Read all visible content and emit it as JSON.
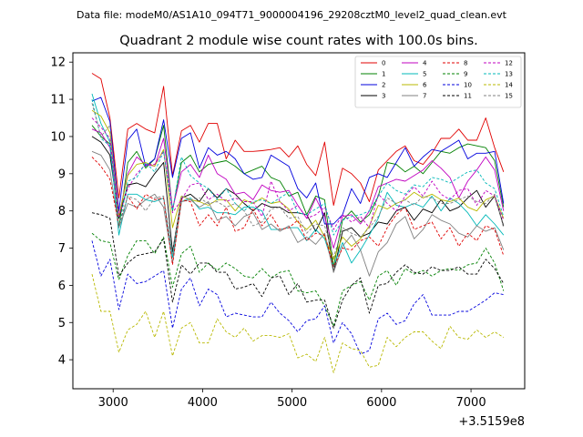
{
  "chart_data": {
    "type": "line",
    "suptitle": "Data file: modeM0/AS1A10_094T71_9000004196_29208cztM0_level2_quad_clean.evt",
    "title": "Quadrant 2 module wise count rates with 100.0s bins.",
    "xlabel": "",
    "ylabel": "",
    "x_offset_label": "+3.5159e8",
    "xlim": [
      2550,
      7600
    ],
    "ylim": [
      3.22,
      12.25
    ],
    "xticks": [
      3000,
      4000,
      5000,
      6000,
      7000
    ],
    "yticks": [
      4,
      5,
      6,
      7,
      8,
      9,
      10,
      11,
      12
    ],
    "grid": false,
    "legend_position": "upper right",
    "x": [
      2764,
      2864,
      2964,
      3064,
      3164,
      3264,
      3364,
      3464,
      3564,
      3664,
      3764,
      3864,
      3964,
      4064,
      4164,
      4264,
      4364,
      4464,
      4564,
      4664,
      4764,
      4864,
      4964,
      5064,
      5164,
      5264,
      5364,
      5464,
      5564,
      5664,
      5764,
      5864,
      5964,
      6064,
      6164,
      6264,
      6364,
      6464,
      6564,
      6664,
      6764,
      6864,
      6964,
      7064,
      7164,
      7264,
      7364
    ],
    "series": [
      {
        "name": "0",
        "color": "#e00000",
        "dash": "solid",
        "values": [
          11.7,
          11.55,
          10.5,
          8.35,
          10.2,
          10.35,
          10.2,
          10.1,
          11.35,
          8.95,
          10.15,
          10.3,
          9.85,
          10.35,
          10.35,
          9.4,
          9.9,
          9.6,
          9.6,
          9.62,
          9.65,
          9.7,
          9.45,
          9.75,
          9.25,
          8.95,
          9.85,
          8.15,
          9.15,
          9.0,
          8.75,
          8.25,
          9.1,
          9.35,
          9.6,
          9.75,
          9.35,
          9.25,
          9.55,
          9.95,
          9.95,
          10.2,
          9.9,
          9.9,
          10.5,
          9.7,
          9.05
        ]
      },
      {
        "name": "1",
        "color": "#008000",
        "dash": "solid",
        "values": [
          10.3,
          10.0,
          9.8,
          7.55,
          9.3,
          9.6,
          9.15,
          9.4,
          10.3,
          8.0,
          9.3,
          9.5,
          9.05,
          9.25,
          9.3,
          9.35,
          9.2,
          9.0,
          9.1,
          9.2,
          8.9,
          8.8,
          8.4,
          8.5,
          7.9,
          8.4,
          8.3,
          6.5,
          7.75,
          8.0,
          7.7,
          7.9,
          8.4,
          9.3,
          9.25,
          9.05,
          9.2,
          9.0,
          9.3,
          9.6,
          9.55,
          9.7,
          9.8,
          9.75,
          9.7,
          9.35,
          8.1
        ]
      },
      {
        "name": "2",
        "color": "#0000dd",
        "dash": "solid",
        "values": [
          10.95,
          11.05,
          10.4,
          8.0,
          9.9,
          10.2,
          9.2,
          9.4,
          10.45,
          8.9,
          9.95,
          10.1,
          9.15,
          9.7,
          9.5,
          9.6,
          9.4,
          9.0,
          8.85,
          8.9,
          9.5,
          9.35,
          9.2,
          8.6,
          8.35,
          8.75,
          7.65,
          7.65,
          7.9,
          8.6,
          8.2,
          8.9,
          9.0,
          8.9,
          9.3,
          9.7,
          9.2,
          9.45,
          9.65,
          9.6,
          9.75,
          9.9,
          9.4,
          9.55,
          9.55,
          9.6,
          8.2
        ]
      },
      {
        "name": "3",
        "color": "#000000",
        "dash": "solid",
        "values": [
          10.0,
          9.85,
          9.5,
          7.8,
          8.7,
          8.75,
          8.65,
          9.0,
          9.3,
          6.9,
          8.35,
          8.45,
          8.25,
          8.6,
          8.35,
          8.6,
          8.45,
          8.2,
          8.0,
          8.2,
          8.1,
          8.1,
          7.95,
          7.95,
          7.9,
          7.45,
          7.95,
          6.35,
          7.45,
          7.55,
          7.3,
          7.4,
          7.7,
          7.65,
          8.0,
          8.1,
          7.75,
          8.05,
          7.95,
          8.3,
          8.0,
          8.1,
          8.35,
          8.55,
          8.1,
          8.4,
          7.6
        ]
      },
      {
        "name": "4",
        "color": "#c000c0",
        "dash": "solid",
        "values": [
          10.2,
          10.1,
          9.7,
          7.85,
          9.0,
          9.45,
          9.25,
          9.2,
          9.95,
          8.05,
          9.05,
          9.25,
          8.9,
          9.5,
          9.0,
          8.85,
          8.45,
          8.5,
          8.3,
          8.7,
          8.55,
          8.5,
          8.55,
          8.15,
          7.8,
          8.35,
          7.85,
          7.0,
          7.85,
          7.9,
          7.65,
          8.0,
          8.65,
          8.75,
          8.85,
          8.8,
          8.95,
          9.1,
          9.35,
          9.15,
          8.9,
          8.35,
          8.8,
          9.1,
          9.45,
          9.1,
          8.0
        ]
      },
      {
        "name": "5",
        "color": "#00b8b8",
        "dash": "solid",
        "values": [
          11.15,
          10.35,
          9.85,
          7.35,
          8.45,
          8.45,
          8.3,
          8.25,
          8.35,
          6.75,
          8.25,
          8.35,
          8.05,
          8.1,
          7.95,
          7.95,
          7.9,
          8.1,
          8.1,
          8.0,
          7.5,
          7.5,
          7.55,
          7.55,
          7.2,
          7.5,
          7.25,
          6.5,
          7.15,
          6.6,
          6.95,
          7.35,
          7.8,
          8.5,
          8.15,
          8.1,
          8.2,
          8.1,
          8.4,
          8.0,
          8.35,
          8.2,
          7.95,
          7.6,
          7.9,
          7.65,
          7.35
        ]
      },
      {
        "name": "6",
        "color": "#b8b800",
        "dash": "solid",
        "values": [
          10.7,
          10.55,
          10.1,
          7.85,
          8.95,
          9.25,
          9.3,
          9.2,
          9.65,
          7.55,
          8.4,
          8.3,
          8.25,
          8.15,
          8.3,
          8.3,
          8.0,
          8.3,
          8.2,
          8.35,
          8.2,
          8.25,
          8.05,
          7.7,
          7.5,
          7.75,
          7.3,
          6.7,
          7.3,
          7.05,
          7.25,
          7.6,
          8.15,
          8.05,
          8.2,
          8.3,
          8.5,
          8.35,
          8.45,
          8.3,
          8.25,
          8.35,
          8.1,
          8.0,
          8.3,
          8.4,
          7.8
        ]
      },
      {
        "name": "7",
        "color": "#808080",
        "dash": "solid",
        "values": [
          9.6,
          9.5,
          9.1,
          7.55,
          8.2,
          8.1,
          8.3,
          8.45,
          8.1,
          6.6,
          8.25,
          8.3,
          8.1,
          8.25,
          7.75,
          7.85,
          7.6,
          7.85,
          7.95,
          7.5,
          7.65,
          7.45,
          7.6,
          7.15,
          7.3,
          7.1,
          7.4,
          6.35,
          7.05,
          7.35,
          6.95,
          6.25,
          6.9,
          7.15,
          7.65,
          7.85,
          7.25,
          7.5,
          7.9,
          7.75,
          7.65,
          7.4,
          7.3,
          7.6,
          7.45,
          7.55,
          6.95
        ]
      },
      {
        "name": "8",
        "color": "#e00000",
        "dash": "dashed",
        "values": [
          9.45,
          9.2,
          8.85,
          7.6,
          8.4,
          8.05,
          8.45,
          8.3,
          8.35,
          6.55,
          8.3,
          8.25,
          7.6,
          7.9,
          7.6,
          8.1,
          7.45,
          7.55,
          8.05,
          7.6,
          7.9,
          7.5,
          7.55,
          7.75,
          7.2,
          7.4,
          7.35,
          6.5,
          7.0,
          6.95,
          7.2,
          7.3,
          7.05,
          7.55,
          7.9,
          8.1,
          7.5,
          7.6,
          7.7,
          7.25,
          7.55,
          7.05,
          7.4,
          7.2,
          7.6,
          7.5,
          6.8
        ]
      },
      {
        "name": "9",
        "color": "#008000",
        "dash": "dashed",
        "values": [
          7.4,
          7.2,
          7.15,
          6.15,
          6.8,
          7.2,
          7.2,
          6.85,
          7.3,
          5.95,
          6.85,
          7.05,
          6.35,
          6.6,
          6.4,
          6.6,
          6.45,
          6.25,
          6.2,
          6.45,
          6.2,
          6.35,
          6.4,
          5.85,
          5.8,
          5.85,
          5.45,
          4.9,
          5.85,
          6.0,
          6.1,
          5.6,
          6.25,
          6.4,
          6.0,
          6.45,
          6.3,
          6.4,
          6.25,
          6.4,
          6.45,
          6.4,
          6.55,
          6.6,
          7.0,
          6.6,
          5.85
        ]
      },
      {
        "name": "10",
        "color": "#0000dd",
        "dash": "dashed",
        "values": [
          7.2,
          6.25,
          6.7,
          5.35,
          6.3,
          6.05,
          6.1,
          6.25,
          6.4,
          4.85,
          5.9,
          6.2,
          5.45,
          5.9,
          5.75,
          5.15,
          5.25,
          5.2,
          5.15,
          5.15,
          5.55,
          5.25,
          5.05,
          4.75,
          5.05,
          5.1,
          5.45,
          4.45,
          5.0,
          4.7,
          4.15,
          4.25,
          5.1,
          5.25,
          4.95,
          5.05,
          5.5,
          5.75,
          5.2,
          5.2,
          5.2,
          5.3,
          5.3,
          5.45,
          5.6,
          5.8,
          5.75
        ]
      },
      {
        "name": "11",
        "color": "#000000",
        "dash": "dashed",
        "values": [
          7.95,
          7.9,
          7.8,
          6.25,
          6.6,
          6.8,
          6.85,
          6.9,
          7.25,
          5.55,
          6.55,
          6.3,
          6.6,
          6.6,
          6.35,
          6.35,
          5.9,
          5.95,
          6.05,
          5.7,
          6.2,
          6.25,
          5.75,
          6.05,
          5.55,
          5.6,
          5.6,
          4.85,
          5.6,
          6.0,
          6.2,
          5.25,
          6.0,
          6.05,
          6.35,
          6.55,
          6.35,
          6.3,
          6.5,
          6.4,
          6.4,
          6.5,
          6.3,
          6.3,
          6.7,
          6.45,
          6.05
        ]
      },
      {
        "name": "12",
        "color": "#c000c0",
        "dash": "dashed",
        "values": [
          10.5,
          10.25,
          9.95,
          7.85,
          8.6,
          9.0,
          9.25,
          9.25,
          9.6,
          7.95,
          8.3,
          8.7,
          8.75,
          8.3,
          8.45,
          8.25,
          8.35,
          8.25,
          8.25,
          7.85,
          8.8,
          8.25,
          8.0,
          8.15,
          7.8,
          7.9,
          8.1,
          7.5,
          7.9,
          7.7,
          7.85,
          7.55,
          8.45,
          8.2,
          8.0,
          8.4,
          8.65,
          8.4,
          8.8,
          8.45,
          8.3,
          8.55,
          8.6,
          8.15,
          8.55,
          8.4,
          7.75
        ]
      },
      {
        "name": "13",
        "color": "#00b8b8",
        "dash": "dashed",
        "values": [
          11.0,
          9.95,
          9.75,
          7.55,
          8.8,
          8.9,
          9.3,
          9.05,
          9.6,
          8.0,
          9.45,
          8.95,
          8.75,
          8.6,
          8.3,
          8.6,
          8.2,
          8.0,
          8.25,
          8.3,
          8.2,
          8.35,
          8.5,
          7.95,
          7.9,
          8.05,
          8.2,
          7.35,
          7.75,
          7.85,
          7.9,
          8.0,
          8.4,
          8.75,
          8.55,
          8.45,
          8.7,
          8.65,
          8.9,
          8.85,
          8.75,
          8.9,
          9.05,
          9.1,
          8.75,
          8.6,
          7.85
        ]
      },
      {
        "name": "14",
        "color": "#b8b800",
        "dash": "dashed",
        "values": [
          6.3,
          5.3,
          5.3,
          4.2,
          4.8,
          4.95,
          5.3,
          4.6,
          5.3,
          4.1,
          4.85,
          5.0,
          4.45,
          4.45,
          5.1,
          4.75,
          4.6,
          4.85,
          4.5,
          4.65,
          4.65,
          4.6,
          4.7,
          4.05,
          4.15,
          3.95,
          4.6,
          3.65,
          4.45,
          4.3,
          4.25,
          3.8,
          3.85,
          4.6,
          4.35,
          4.6,
          4.75,
          4.75,
          4.5,
          4.3,
          4.9,
          4.6,
          4.55,
          4.8,
          4.6,
          4.75,
          4.6
        ]
      },
      {
        "name": "15",
        "color": "#808080",
        "dash": "dashed",
        "values": [
          10.9,
          10.0,
          10.3,
          7.55,
          8.4,
          8.3,
          8.0,
          8.35,
          8.4,
          6.85,
          8.4,
          8.3,
          8.35,
          8.2,
          8.25,
          8.1,
          8.2,
          8.0,
          7.6,
          7.7,
          8.05,
          8.1,
          7.8,
          7.85,
          7.4,
          7.65,
          7.6,
          6.75,
          7.55,
          7.4,
          7.3,
          7.55,
          7.85,
          8.35,
          8.2,
          8.3,
          8.15,
          8.4,
          8.35,
          8.2,
          8.2,
          8.3,
          8.4,
          8.25,
          8.2,
          8.45,
          7.55
        ]
      }
    ]
  }
}
